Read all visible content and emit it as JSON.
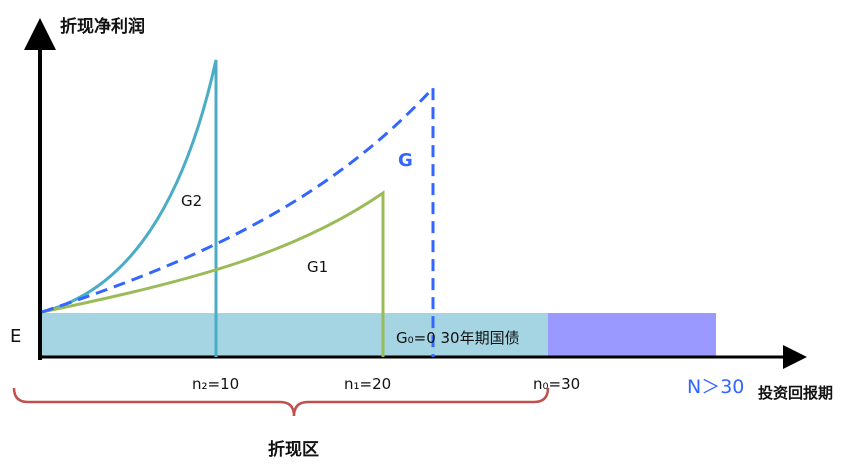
{
  "y_axis_label": "折现净利润",
  "x_axis_label": "投资回报期",
  "e_label": "E",
  "curves": [
    {
      "label": "G2",
      "color": "#4bacc6",
      "style": "solid"
    },
    {
      "label": "G1",
      "color": "#9bbb59",
      "style": "solid"
    },
    {
      "label": "G",
      "color": "#3366ff",
      "style": "dashed"
    }
  ],
  "baseline_label": "G₀=0 30年期国债",
  "ticks": [
    "n₂=10",
    "n₁=20",
    "n₀=30"
  ],
  "beyond_label": "N＞30",
  "brace_label": "折现区",
  "colors": {
    "zone": "#a5d5e3",
    "beyond_zone": "#9999ff",
    "brace": "#c0504d",
    "accent": "#3366ff"
  }
}
